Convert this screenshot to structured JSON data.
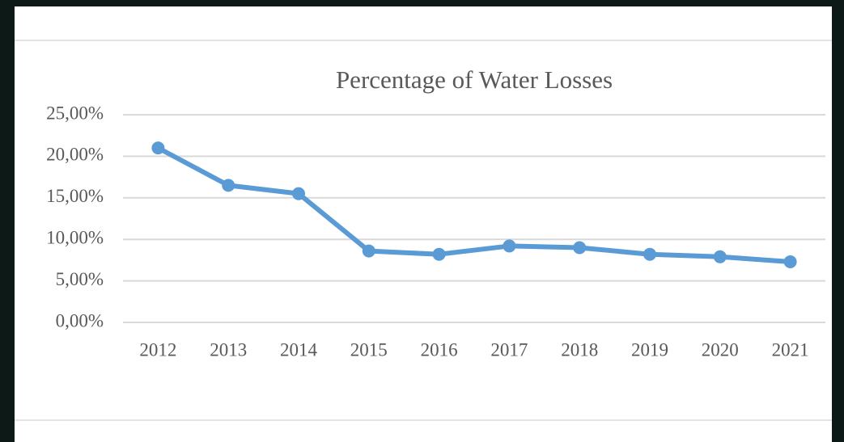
{
  "chart_data": {
    "type": "line",
    "title": "Percentage of Water Losses",
    "categories": [
      "2012",
      "2013",
      "2014",
      "2015",
      "2016",
      "2017",
      "2018",
      "2019",
      "2020",
      "2021"
    ],
    "series": [
      {
        "name": "Percentage of Water Losses",
        "color": "#5b9bd5",
        "values": [
          21.0,
          16.5,
          15.5,
          8.6,
          8.2,
          9.2,
          9.0,
          8.2,
          7.9,
          7.3
        ]
      }
    ],
    "ylim": [
      0,
      25
    ],
    "yticks": [
      {
        "value": 0,
        "label": "0,00%"
      },
      {
        "value": 5,
        "label": "5,00%"
      },
      {
        "value": 10,
        "label": "10,00%"
      },
      {
        "value": 15,
        "label": "15,00%"
      },
      {
        "value": 20,
        "label": "20,00%"
      },
      {
        "value": 25,
        "label": "25,00%"
      }
    ],
    "grid": true
  }
}
